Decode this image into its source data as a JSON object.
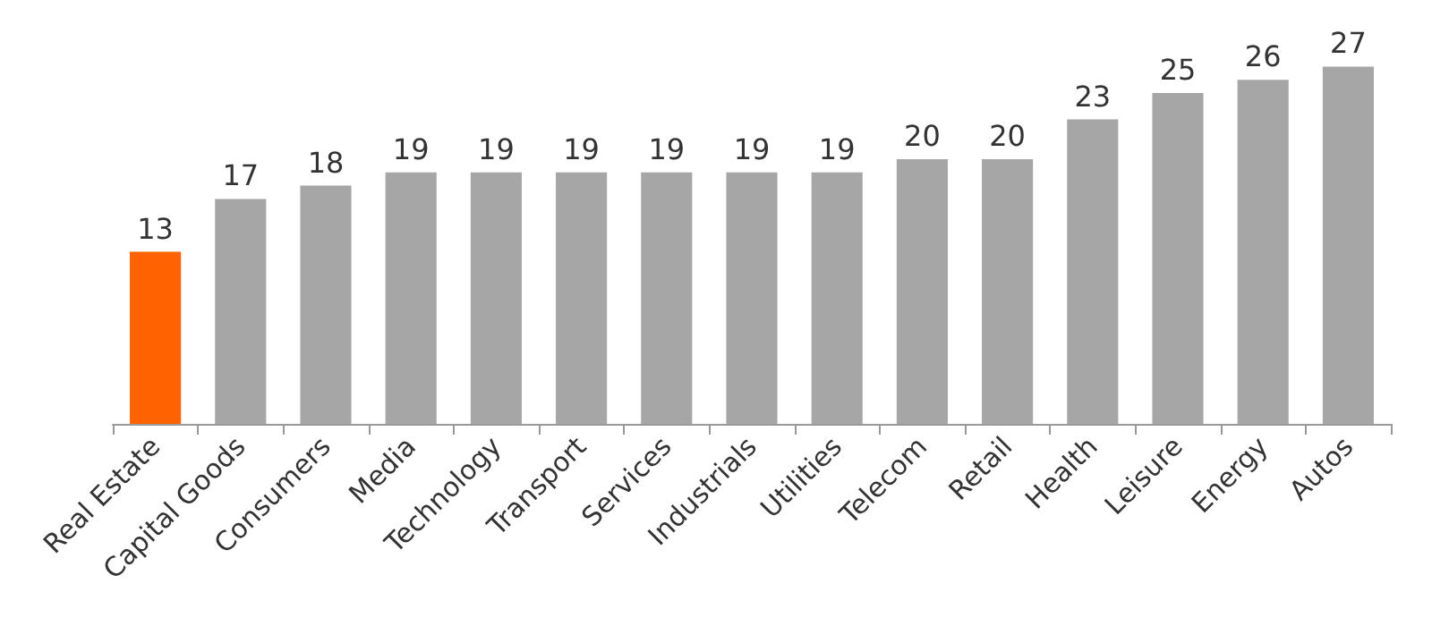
{
  "chart_data": {
    "type": "bar",
    "categories": [
      "Real Estate",
      "Capital Goods",
      "Consumers",
      "Media",
      "Technology",
      "Transport",
      "Services",
      "Industrials",
      "Utilities",
      "Telecom",
      "Retail",
      "Health",
      "Leisure",
      "Energy",
      "Autos"
    ],
    "values": [
      13,
      17,
      18,
      19,
      19,
      19,
      19,
      19,
      19,
      20,
      20,
      23,
      25,
      26,
      27
    ],
    "colors": [
      "#ff6200",
      "#a6a6a6",
      "#a6a6a6",
      "#a6a6a6",
      "#a6a6a6",
      "#a6a6a6",
      "#a6a6a6",
      "#a6a6a6",
      "#a6a6a6",
      "#a6a6a6",
      "#a6a6a6",
      "#a6a6a6",
      "#a6a6a6",
      "#a6a6a6",
      "#a6a6a6"
    ],
    "data_labels": true
  }
}
